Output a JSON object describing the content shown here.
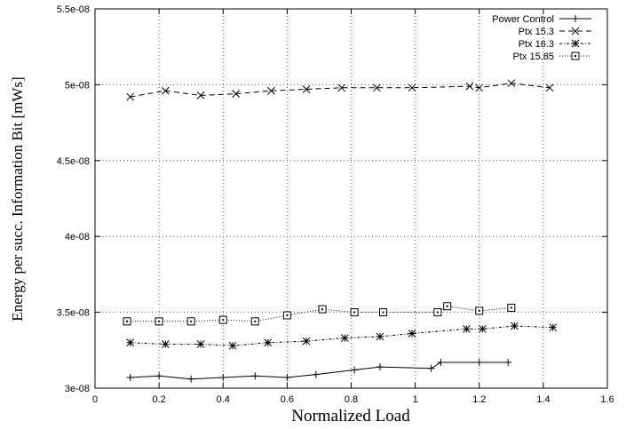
{
  "chart_data": {
    "type": "line",
    "title": "",
    "xlabel": "Normalized Load",
    "ylabel": "Energy per succ. Information Bit [mWs]",
    "xlim": [
      0,
      1.6
    ],
    "ylim": [
      3e-08,
      5.5e-08
    ],
    "x_ticks": [
      0,
      0.2,
      0.4,
      0.6,
      0.8,
      1,
      1.2,
      1.4,
      1.6
    ],
    "x_tick_labels": [
      "0",
      "0.2",
      "0.4",
      "0.6",
      "0.8",
      "1",
      "1.2",
      "1.4",
      "1.6"
    ],
    "y_ticks": [
      3e-08,
      3.5e-08,
      4e-08,
      4.5e-08,
      5e-08,
      5.5e-08
    ],
    "y_tick_labels": [
      "3e-08",
      "3.5e-08",
      "4e-08",
      "4.5e-08",
      "5e-08",
      "5.5e-08"
    ],
    "grid": true,
    "legend_position": "top-right",
    "series": [
      {
        "name": "Power Control",
        "marker": "plus",
        "dash": "solid",
        "color": "#000000",
        "x": [
          0.11,
          0.2,
          0.3,
          0.4,
          0.5,
          0.6,
          0.69,
          0.81,
          0.89,
          1.05,
          1.08,
          1.2,
          1.29
        ],
        "y": [
          3.07e-08,
          3.08e-08,
          3.06e-08,
          3.07e-08,
          3.08e-08,
          3.07e-08,
          3.09e-08,
          3.12e-08,
          3.14e-08,
          3.13e-08,
          3.17e-08,
          3.17e-08,
          3.17e-08
        ]
      },
      {
        "name": "Ptx 15.3",
        "marker": "x",
        "dash": "dashed",
        "color": "#000000",
        "x": [
          0.11,
          0.22,
          0.33,
          0.44,
          0.55,
          0.66,
          0.77,
          0.88,
          0.99,
          1.17,
          1.2,
          1.3,
          1.42
        ],
        "y": [
          4.92e-08,
          4.96e-08,
          4.93e-08,
          4.94e-08,
          4.96e-08,
          4.97e-08,
          4.98e-08,
          4.98e-08,
          4.98e-08,
          4.99e-08,
          4.98e-08,
          5.01e-08,
          4.98e-08
        ]
      },
      {
        "name": "Ptx 16.3",
        "marker": "star",
        "dash": "dotdash",
        "color": "#000000",
        "x": [
          0.11,
          0.22,
          0.33,
          0.43,
          0.54,
          0.66,
          0.78,
          0.89,
          0.99,
          1.16,
          1.21,
          1.31,
          1.43
        ],
        "y": [
          3.3e-08,
          3.29e-08,
          3.29e-08,
          3.28e-08,
          3.3e-08,
          3.31e-08,
          3.33e-08,
          3.34e-08,
          3.36e-08,
          3.39e-08,
          3.39e-08,
          3.41e-08,
          3.4e-08
        ]
      },
      {
        "name": "Ptx 15.85",
        "marker": "square",
        "dash": "dotted",
        "color": "#000000",
        "x": [
          0.1,
          0.2,
          0.3,
          0.4,
          0.5,
          0.6,
          0.71,
          0.81,
          0.9,
          1.07,
          1.1,
          1.2,
          1.3
        ],
        "y": [
          3.44e-08,
          3.44e-08,
          3.44e-08,
          3.45e-08,
          3.44e-08,
          3.48e-08,
          3.52e-08,
          3.5e-08,
          3.5e-08,
          3.5e-08,
          3.54e-08,
          3.51e-08,
          3.53e-08
        ]
      }
    ]
  }
}
